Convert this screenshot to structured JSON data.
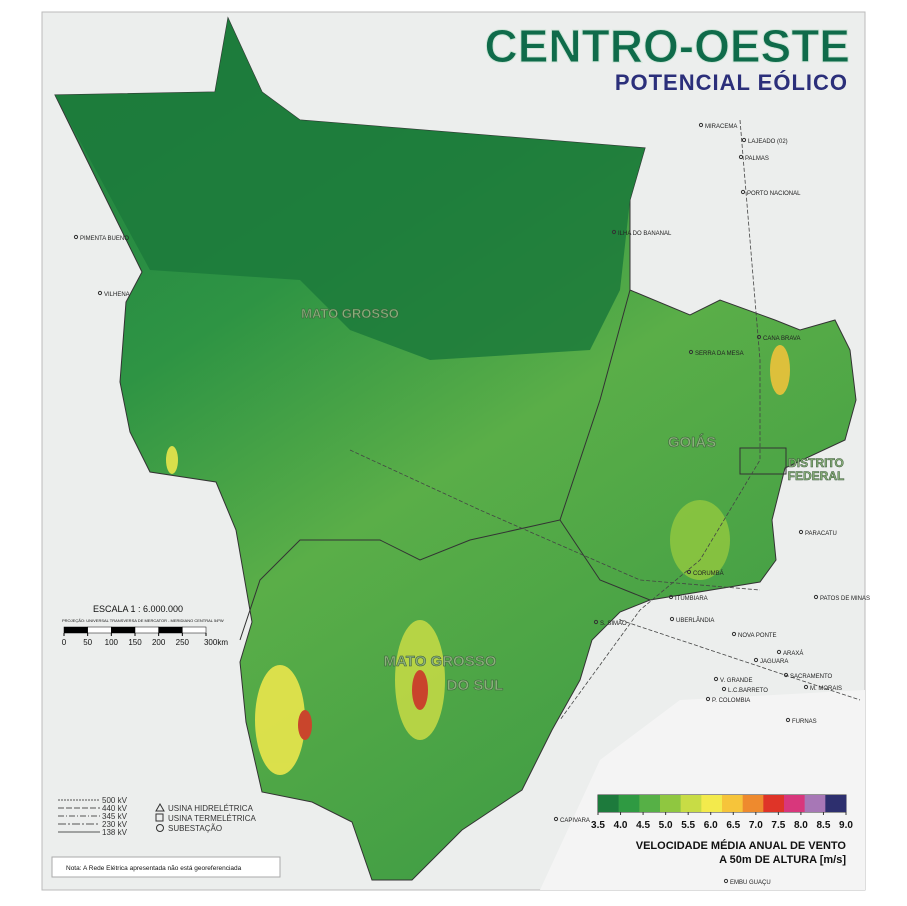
{
  "header": {
    "title": "CENTRO-OESTE",
    "subtitle": "POTENCIAL EÓLICO"
  },
  "state_labels": [
    "MATO GROSSO",
    "GOIÁS",
    "DISTRITO",
    "FEDERAL",
    "MATO GROSSO",
    "DO SUL"
  ],
  "cities": [
    "MIRACEMA",
    "LAJEADO (02)",
    "PALMAS",
    "PORTO NACIONAL",
    "ILHA DO BANANAL",
    "PIMENTA BUENO",
    "VILHENA",
    "SERRA DA MESA",
    "CANA BRAVA",
    "PARACATU",
    "PATOS DE MINAS",
    "ITUMBIARA",
    "S. SIMÃO",
    "CORUMBÁ",
    "UBERLÂNDIA",
    "NOVA PONTE",
    "JAGUARA",
    "SACRAMENTO",
    "L.C.BARRETO",
    "M. MORAIS",
    "V. GRANDE",
    "P. COLOMBIA",
    "FURNAS",
    "ARAXÁ",
    "CAPIVARA",
    "EMBU GUAÇU"
  ],
  "scale": {
    "title": "ESCALA  1 : 6.000.000",
    "projection": "PROJEÇÃO: UNIVERSAL TRANSVERSA DE MERCATOR - MERIDIANO CENTRAL 54ºW",
    "ticks": [
      0,
      50,
      100,
      150,
      200,
      {
        "value": 250,
        "label": "250"
      },
      {
        "value": 300,
        "label": "300km"
      }
    ]
  },
  "line_legend": [
    "500  kV",
    "440  kV",
    "345  kV",
    "230  kV",
    "138  kV"
  ],
  "symbol_legend": [
    "USINA  HIDRELÉTRICA",
    "USINA  TERMELÉTRICA",
    "SUBESTAÇÃO"
  ],
  "note": "Nota: A Rede Elétrica apresentada não está georeferenciada",
  "wind_legend": {
    "title": [
      "VELOCIDADE MÉDIA ANUAL DE VENTO",
      "A 50m DE ALTURA  [m/s]"
    ],
    "ticks": [
      3.5,
      {
        "value": 4,
        "label": "4.0"
      },
      4.5,
      {
        "value": 5,
        "label": "5.0"
      },
      5.5,
      {
        "value": 6,
        "label": "6.0"
      },
      6.5,
      {
        "value": 7,
        "label": "7.0"
      },
      7.5,
      {
        "value": 8,
        "label": "8.0"
      },
      8.5,
      {
        "value": 9,
        "label": "9.0"
      }
    ],
    "colors": [
      "#1d7a3c",
      "#2f9a42",
      "#56b046",
      "#8fc740",
      "#c8dc45",
      "#f3ea4c",
      "#f6c43a",
      "#ee8a2e",
      "#df3428",
      "#d8377c",
      "#a777b6",
      "#2d2f6e"
    ]
  }
}
